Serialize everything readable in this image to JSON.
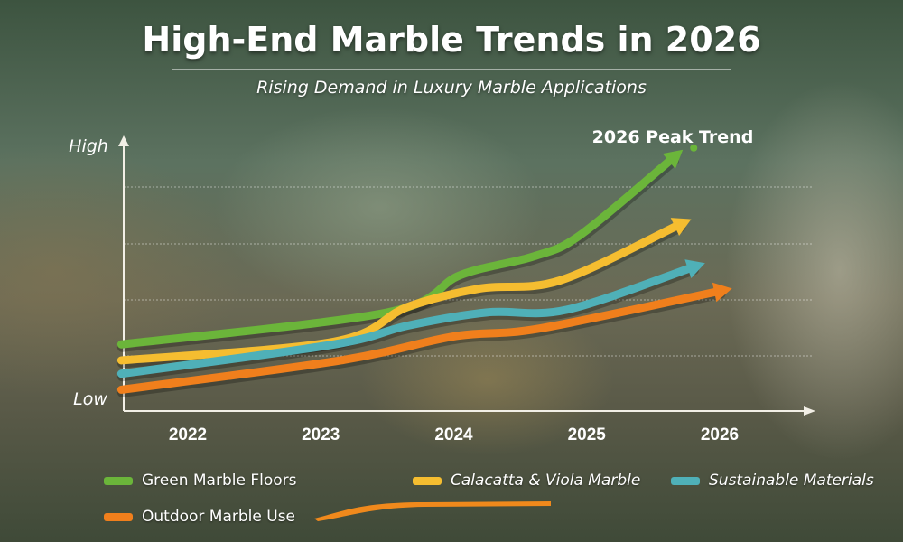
{
  "title": "High-End Marble Trends in 2026",
  "subtitle": "Rising Demand in Luxury Marble Applications",
  "chart_data": {
    "type": "line",
    "title": "High-End Marble Trends in 2026",
    "subtitle": "Rising Demand in Luxury Marble Applications",
    "xlabel": "",
    "ylabel": "",
    "x_ticks": [
      "2022",
      "2023",
      "2024",
      "2025",
      "2026"
    ],
    "y_tick_labels": {
      "low": "Low",
      "high": "High"
    },
    "ylim": [
      0,
      100
    ],
    "xlim": [
      2021.5,
      2026.5
    ],
    "grid": true,
    "legend_position": "bottom",
    "annotation": "2026 Peak Trend",
    "series": [
      {
        "name": "Green Marble Floors",
        "color": "#6bb53a",
        "points": [
          [
            2021.5,
            25
          ],
          [
            2023.5,
            37
          ],
          [
            2024.05,
            51
          ],
          [
            2024.6,
            58
          ],
          [
            2024.95,
            66
          ],
          [
            2025.65,
            95
          ]
        ]
      },
      {
        "name": "Calacatta & Viola Marble",
        "color": "#f5bd30",
        "points": [
          [
            2021.5,
            19
          ],
          [
            2023.1,
            26
          ],
          [
            2023.65,
            39
          ],
          [
            2024.2,
            46
          ],
          [
            2024.8,
            49
          ],
          [
            2025.7,
            70
          ]
        ]
      },
      {
        "name": "Sustainable Materials",
        "color": "#4fb0b8",
        "points": [
          [
            2021.5,
            14
          ],
          [
            2023.1,
            25
          ],
          [
            2023.65,
            32
          ],
          [
            2024.25,
            37
          ],
          [
            2024.85,
            38
          ],
          [
            2025.8,
            54
          ]
        ]
      },
      {
        "name": "Outdoor Marble Use",
        "color": "#f07f1c",
        "points": [
          [
            2021.5,
            8
          ],
          [
            2023.15,
            19
          ],
          [
            2024,
            28
          ],
          [
            2024.65,
            31
          ],
          [
            2026,
            45
          ]
        ]
      }
    ]
  }
}
